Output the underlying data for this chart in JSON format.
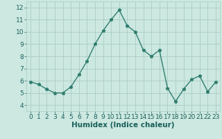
{
  "x": [
    0,
    1,
    2,
    3,
    4,
    5,
    6,
    7,
    8,
    9,
    10,
    11,
    12,
    13,
    14,
    15,
    16,
    17,
    18,
    19,
    20,
    21,
    22,
    23
  ],
  "y": [
    5.9,
    5.7,
    5.3,
    5.0,
    5.0,
    5.5,
    6.5,
    7.6,
    9.0,
    10.1,
    11.0,
    11.8,
    10.5,
    10.0,
    8.5,
    8.0,
    8.5,
    5.4,
    4.3,
    5.3,
    6.1,
    6.4,
    5.1,
    5.9
  ],
  "line_color": "#2e7d6e",
  "marker": "*",
  "marker_size": 3.5,
  "bg_color": "#cce8e0",
  "grid_color": "#aaccc4",
  "xlabel": "Humidex (Indice chaleur)",
  "xlabel_fontsize": 7.5,
  "tick_fontsize": 6.5,
  "ylim": [
    3.5,
    12.5
  ],
  "xlim": [
    -0.5,
    23.5
  ],
  "yticks": [
    4,
    5,
    6,
    7,
    8,
    9,
    10,
    11,
    12
  ],
  "xticks": [
    0,
    1,
    2,
    3,
    4,
    5,
    6,
    7,
    8,
    9,
    10,
    11,
    12,
    13,
    14,
    15,
    16,
    17,
    18,
    19,
    20,
    21,
    22,
    23
  ]
}
